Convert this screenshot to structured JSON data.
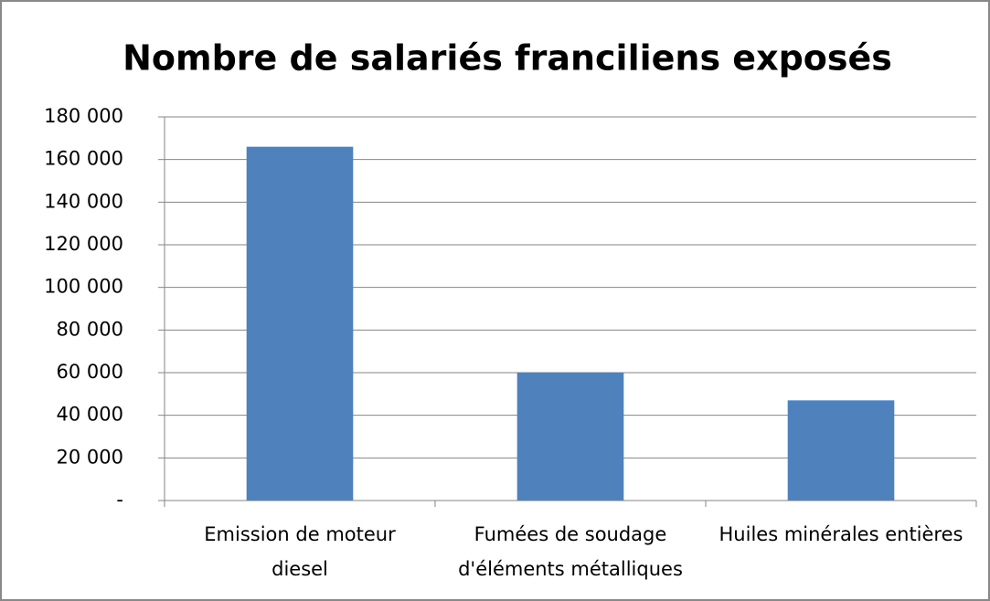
{
  "chart_data": {
    "type": "bar",
    "title": "Nombre de salariés franciliens exposés",
    "categories": [
      "Emission de moteur diesel",
      "Fumées de soudage d'éléments métalliques",
      "Huiles minérales entières"
    ],
    "values": [
      166000,
      60000,
      47000
    ],
    "color": "#4f81bd",
    "ylim": [
      0,
      180000
    ],
    "yticks": [
      {
        "value": 0,
        "label": "-"
      },
      {
        "value": 20000,
        "label": "20 000"
      },
      {
        "value": 40000,
        "label": "40 000"
      },
      {
        "value": 60000,
        "label": "60 000"
      },
      {
        "value": 80000,
        "label": "80 000"
      },
      {
        "value": 100000,
        "label": "100 000"
      },
      {
        "value": 120000,
        "label": "120 000"
      },
      {
        "value": 140000,
        "label": "140 000"
      },
      {
        "value": 160000,
        "label": "160 000"
      },
      {
        "value": 180000,
        "label": "180 000"
      }
    ],
    "grid": true
  }
}
